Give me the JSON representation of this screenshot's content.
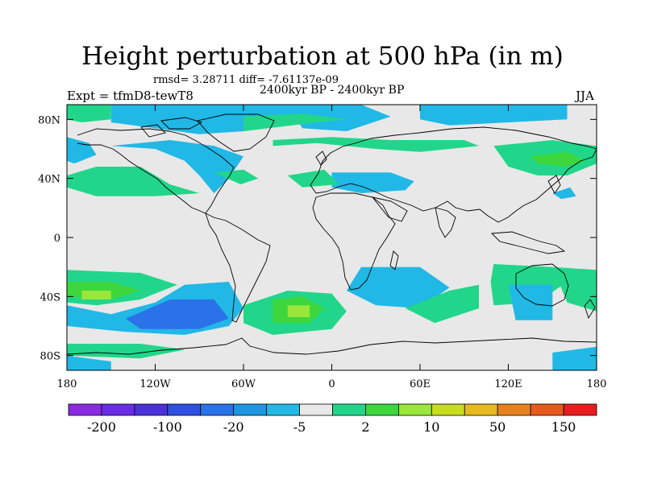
{
  "title": "Height perturbation at 500 hPa (in m)",
  "stats": "rmsd= 3.28711 diff= -7.61137e-09",
  "period": "2400kyr BP - 2400kyr BP",
  "experiment": "Expt = tfmD8-tewT8",
  "season": "JJA",
  "map": {
    "projection": "cylindrical equidistant",
    "lon_range": [
      -180,
      180
    ],
    "lat_range": [
      -90,
      90
    ],
    "background_color": "#e8e8e8",
    "coastline_color": "#000000",
    "x_ticks": [
      {
        "value": -180,
        "label": "180"
      },
      {
        "value": -120,
        "label": "120W"
      },
      {
        "value": -60,
        "label": "60W"
      },
      {
        "value": 0,
        "label": "0"
      },
      {
        "value": 60,
        "label": "60E"
      },
      {
        "value": 120,
        "label": "120E"
      },
      {
        "value": 180,
        "label": "180"
      }
    ],
    "y_ticks": [
      {
        "value": 80,
        "label": "80N"
      },
      {
        "value": 40,
        "label": "40N"
      },
      {
        "value": 0,
        "label": "0"
      },
      {
        "value": -40,
        "label": "40S"
      },
      {
        "value": -80,
        "label": "80S"
      }
    ]
  },
  "colorbar": {
    "colors": [
      "#8a2be2",
      "#6a2ce6",
      "#4b32d8",
      "#2f4fe0",
      "#2a72e8",
      "#1e96e0",
      "#21b8e6",
      "#e8e8e8",
      "#21d68a",
      "#3dd63d",
      "#9ae63a",
      "#c8dc1e",
      "#e6b91e",
      "#e6821e",
      "#e65a1e",
      "#e61e1e"
    ],
    "labels": [
      "-200",
      "-100",
      "-20",
      "-5",
      "2",
      "10",
      "50",
      "150"
    ],
    "label_positions": [
      1,
      3,
      5,
      7,
      9,
      11,
      13,
      15
    ]
  },
  "chart_data": {
    "type": "heatmap",
    "title": "Height perturbation at 500 hPa (in m)",
    "units": "m",
    "contour_levels": [
      -200,
      -100,
      -20,
      -5,
      2,
      10,
      50,
      150
    ],
    "regions": [
      {
        "color": "#21b8e6",
        "points": [
          [
            -150,
            90
          ],
          [
            -30,
            90
          ],
          [
            -20,
            80
          ],
          [
            -60,
            72
          ],
          [
            -90,
            70
          ],
          [
            -150,
            78
          ]
        ]
      },
      {
        "color": "#21b8e6",
        "points": [
          [
            -30,
            90
          ],
          [
            20,
            90
          ],
          [
            40,
            82
          ],
          [
            10,
            72
          ],
          [
            -20,
            74
          ]
        ]
      },
      {
        "color": "#21b8e6",
        "points": [
          [
            60,
            90
          ],
          [
            160,
            90
          ],
          [
            160,
            80
          ],
          [
            120,
            78
          ],
          [
            80,
            76
          ],
          [
            60,
            80
          ]
        ]
      },
      {
        "color": "#21d68a",
        "points": [
          [
            -180,
            90
          ],
          [
            -150,
            90
          ],
          [
            -150,
            80
          ],
          [
            -170,
            78
          ],
          [
            -180,
            80
          ]
        ]
      },
      {
        "color": "#21d68a",
        "points": [
          [
            -60,
            72
          ],
          [
            -10,
            78
          ],
          [
            10,
            80
          ],
          [
            -20,
            84
          ],
          [
            -60,
            82
          ]
        ]
      },
      {
        "color": "#21d68a",
        "points": [
          [
            -40,
            62
          ],
          [
            -10,
            64
          ],
          [
            30,
            60
          ],
          [
            60,
            58
          ],
          [
            100,
            62
          ],
          [
            90,
            66
          ],
          [
            40,
            66
          ],
          [
            0,
            68
          ],
          [
            -40,
            66
          ]
        ]
      },
      {
        "color": "#21d68a",
        "points": [
          [
            110,
            62
          ],
          [
            150,
            66
          ],
          [
            180,
            62
          ],
          [
            180,
            50
          ],
          [
            160,
            42
          ],
          [
            140,
            42
          ],
          [
            120,
            48
          ]
        ]
      },
      {
        "color": "#3dd63d",
        "points": [
          [
            135,
            55
          ],
          [
            160,
            58
          ],
          [
            172,
            52
          ],
          [
            160,
            48
          ],
          [
            140,
            50
          ]
        ]
      },
      {
        "color": "#21b8e6",
        "points": [
          [
            -180,
            68
          ],
          [
            -165,
            64
          ],
          [
            -160,
            56
          ],
          [
            -175,
            50
          ],
          [
            -180,
            52
          ]
        ]
      },
      {
        "color": "#21b8e6",
        "points": [
          [
            -150,
            62
          ],
          [
            -120,
            60
          ],
          [
            -100,
            52
          ],
          [
            -90,
            42
          ],
          [
            -80,
            30
          ],
          [
            -70,
            40
          ],
          [
            -60,
            55
          ],
          [
            -80,
            62
          ],
          [
            -110,
            66
          ]
        ]
      },
      {
        "color": "#21d68a",
        "points": [
          [
            -180,
            42
          ],
          [
            -160,
            48
          ],
          [
            -130,
            48
          ],
          [
            -110,
            36
          ],
          [
            -90,
            30
          ],
          [
            -120,
            28
          ],
          [
            -160,
            28
          ],
          [
            -180,
            34
          ]
        ]
      },
      {
        "color": "#21d68a",
        "points": [
          [
            -80,
            44
          ],
          [
            -60,
            46
          ],
          [
            -50,
            40
          ],
          [
            -62,
            36
          ]
        ]
      },
      {
        "color": "#21b8e6",
        "points": [
          [
            0,
            44
          ],
          [
            40,
            44
          ],
          [
            56,
            38
          ],
          [
            50,
            32
          ],
          [
            20,
            30
          ],
          [
            0,
            34
          ]
        ]
      },
      {
        "color": "#21d68a",
        "points": [
          [
            -30,
            42
          ],
          [
            -5,
            46
          ],
          [
            5,
            36
          ],
          [
            -20,
            34
          ]
        ]
      },
      {
        "color": "#21b8e6",
        "points": [
          [
            150,
            30
          ],
          [
            162,
            34
          ],
          [
            166,
            28
          ],
          [
            156,
            26
          ]
        ]
      },
      {
        "color": "#21d68a",
        "points": [
          [
            -180,
            -22
          ],
          [
            -130,
            -24
          ],
          [
            -105,
            -32
          ],
          [
            -130,
            -42
          ],
          [
            -160,
            -46
          ],
          [
            -180,
            -44
          ]
        ]
      },
      {
        "color": "#3dd63d",
        "points": [
          [
            -180,
            -30
          ],
          [
            -150,
            -30
          ],
          [
            -130,
            -36
          ],
          [
            -150,
            -42
          ],
          [
            -180,
            -40
          ]
        ]
      },
      {
        "color": "#9ae63a",
        "points": [
          [
            -170,
            -36
          ],
          [
            -150,
            -36
          ],
          [
            -150,
            -42
          ],
          [
            -170,
            -42
          ]
        ]
      },
      {
        "color": "#21b8e6",
        "points": [
          [
            -180,
            -46
          ],
          [
            -150,
            -52
          ],
          [
            -120,
            -44
          ],
          [
            -100,
            -32
          ],
          [
            -70,
            -30
          ],
          [
            -60,
            -48
          ],
          [
            -70,
            -60
          ],
          [
            -100,
            -66
          ],
          [
            -140,
            -64
          ],
          [
            -180,
            -60
          ]
        ]
      },
      {
        "color": "#2a72e8",
        "points": [
          [
            -140,
            -55
          ],
          [
            -110,
            -42
          ],
          [
            -80,
            -42
          ],
          [
            -70,
            -55
          ],
          [
            -90,
            -62
          ],
          [
            -130,
            -62
          ]
        ]
      },
      {
        "color": "#21d68a",
        "points": [
          [
            -180,
            -72
          ],
          [
            -130,
            -72
          ],
          [
            -100,
            -76
          ],
          [
            -130,
            -82
          ],
          [
            -180,
            -80
          ]
        ]
      },
      {
        "color": "#21d68a",
        "points": [
          [
            -60,
            -46
          ],
          [
            -30,
            -36
          ],
          [
            0,
            -38
          ],
          [
            10,
            -50
          ],
          [
            0,
            -62
          ],
          [
            -40,
            -66
          ],
          [
            -60,
            -58
          ]
        ]
      },
      {
        "color": "#3dd63d",
        "points": [
          [
            -40,
            -42
          ],
          [
            -20,
            -40
          ],
          [
            -5,
            -48
          ],
          [
            -15,
            -58
          ],
          [
            -40,
            -58
          ]
        ]
      },
      {
        "color": "#9ae63a",
        "points": [
          [
            -30,
            -46
          ],
          [
            -15,
            -46
          ],
          [
            -15,
            -54
          ],
          [
            -30,
            -54
          ]
        ]
      },
      {
        "color": "#21b8e6",
        "points": [
          [
            20,
            -20
          ],
          [
            60,
            -20
          ],
          [
            80,
            -34
          ],
          [
            60,
            -48
          ],
          [
            30,
            -46
          ],
          [
            10,
            -36
          ]
        ]
      },
      {
        "color": "#21d68a",
        "points": [
          [
            50,
            -48
          ],
          [
            80,
            -36
          ],
          [
            100,
            -32
          ],
          [
            100,
            -48
          ],
          [
            70,
            -58
          ]
        ]
      },
      {
        "color": "#21d68a",
        "points": [
          [
            110,
            -18
          ],
          [
            150,
            -20
          ],
          [
            160,
            -30
          ],
          [
            140,
            -44
          ],
          [
            110,
            -46
          ],
          [
            108,
            -30
          ]
        ]
      },
      {
        "color": "#21b8e6",
        "points": [
          [
            120,
            -32
          ],
          [
            150,
            -32
          ],
          [
            150,
            -56
          ],
          [
            125,
            -56
          ]
        ]
      },
      {
        "color": "#21d68a",
        "points": [
          [
            150,
            -20
          ],
          [
            180,
            -22
          ],
          [
            180,
            -50
          ],
          [
            160,
            -44
          ]
        ]
      },
      {
        "color": "#21b8e6",
        "points": [
          [
            150,
            -78
          ],
          [
            180,
            -74
          ],
          [
            180,
            -90
          ],
          [
            150,
            -90
          ]
        ]
      },
      {
        "color": "#21b8e6",
        "points": [
          [
            -180,
            -80
          ],
          [
            -150,
            -84
          ],
          [
            -150,
            -90
          ],
          [
            -180,
            -90
          ]
        ]
      }
    ]
  }
}
